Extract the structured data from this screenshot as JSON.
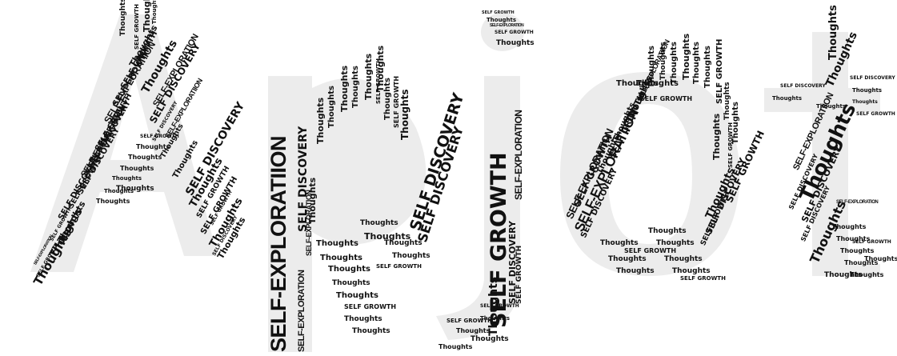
{
  "image": {
    "words": [
      "SELF-EXPLORATIION",
      "SELF-EXPLORATION",
      "SELF GROWTH",
      "SELF DISCOVERY",
      "Thoughts"
    ],
    "letters": [
      "A",
      "p",
      "j",
      "o",
      "t"
    ],
    "colors": {
      "background": "#ffffff",
      "ink": "#111111",
      "letter_fill": "#ececec"
    }
  }
}
